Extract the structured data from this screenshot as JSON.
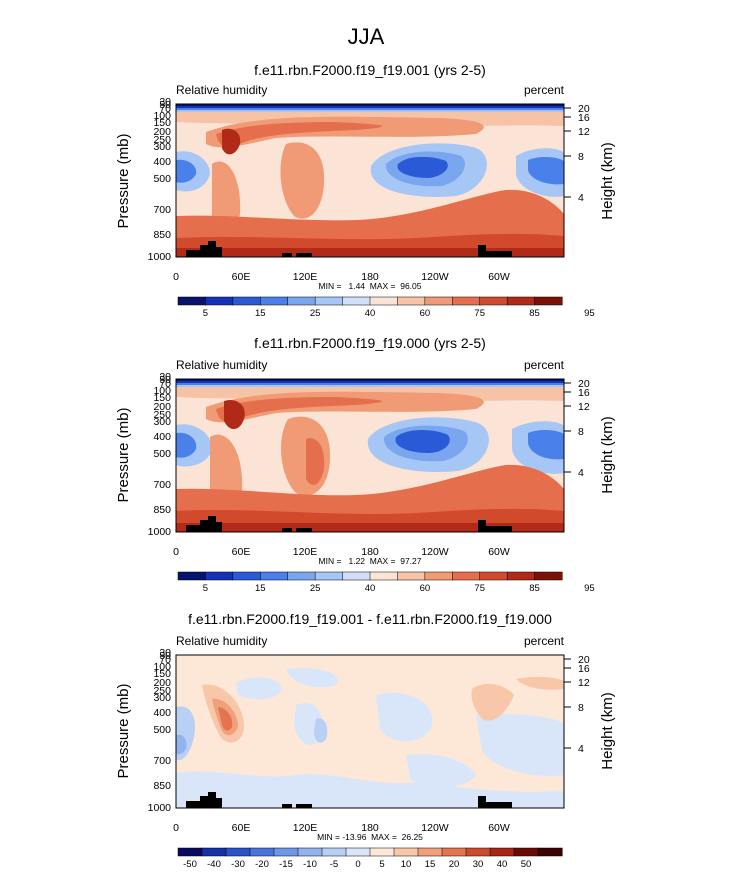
{
  "figure_title": "JJA",
  "chart_data": [
    {
      "type": "heatmap",
      "title": "f.e11.rbn.F2000.f19_f19.001 (yrs 2-5)",
      "left_label": "Relative humidity",
      "right_label": "percent",
      "ylabel": "Pressure (mb)",
      "y2label": "Height (km)",
      "x_ticks": [
        "0",
        "60E",
        "120E",
        "180",
        "120W",
        "60W"
      ],
      "y_ticks": [
        "1000",
        "850",
        "700",
        "500",
        "400",
        "300",
        "250",
        "200",
        "150",
        "100",
        "70",
        "50",
        "30"
      ],
      "y2_ticks": [
        "4",
        "8",
        "12",
        "16",
        "20"
      ],
      "stats": "MIN =   1.44  MAX =  96.05",
      "min": 1.44,
      "max": 96.05,
      "colorbar_labels": [
        "5",
        "15",
        "25",
        "40",
        "60",
        "75",
        "85",
        "95"
      ]
    },
    {
      "type": "heatmap",
      "title": "f.e11.rbn.F2000.f19_f19.000 (yrs 2-5)",
      "left_label": "Relative humidity",
      "right_label": "percent",
      "ylabel": "Pressure (mb)",
      "y2label": "Height (km)",
      "x_ticks": [
        "0",
        "60E",
        "120E",
        "180",
        "120W",
        "60W"
      ],
      "y_ticks": [
        "1000",
        "850",
        "700",
        "500",
        "400",
        "300",
        "250",
        "200",
        "150",
        "100",
        "70",
        "50",
        "30"
      ],
      "y2_ticks": [
        "4",
        "8",
        "12",
        "16",
        "20"
      ],
      "stats": "MIN =   1.22  MAX =  97.27",
      "min": 1.22,
      "max": 97.27,
      "colorbar_labels": [
        "5",
        "15",
        "25",
        "40",
        "60",
        "75",
        "85",
        "95"
      ]
    },
    {
      "type": "heatmap",
      "title": "f.e11.rbn.F2000.f19_f19.001 - f.e11.rbn.F2000.f19_f19.000",
      "left_label": "Relative humidity",
      "right_label": "percent",
      "ylabel": "Pressure (mb)",
      "y2label": "Height (km)",
      "x_ticks": [
        "0",
        "60E",
        "120E",
        "180",
        "120W",
        "60W"
      ],
      "y_ticks": [
        "1000",
        "850",
        "700",
        "500",
        "400",
        "300",
        "250",
        "200",
        "150",
        "100",
        "70",
        "50",
        "30"
      ],
      "y2_ticks": [
        "4",
        "8",
        "12",
        "16",
        "20"
      ],
      "stats": "MIN = -13.96  MAX =  26.25",
      "min": -13.96,
      "max": 26.25,
      "colorbar_labels": [
        "-50",
        "-40",
        "-30",
        "-20",
        "-15",
        "-10",
        "-5",
        "0",
        "5",
        "10",
        "15",
        "20",
        "30",
        "40",
        "50"
      ]
    }
  ],
  "colors": {
    "abs_palette": [
      "#08136e",
      "#1432b8",
      "#2a5ad6",
      "#4a80ea",
      "#7aa6f0",
      "#a6c6f5",
      "#cfe0f8",
      "#fbe4d6",
      "#f6c3a6",
      "#f09b76",
      "#e56f4c",
      "#d24a2c",
      "#b02a17",
      "#7a1208"
    ],
    "diff_palette": [
      "#0a0a60",
      "#1530a8",
      "#2a52c8",
      "#4a74dc",
      "#6d95e8",
      "#93b3f0",
      "#b8cff6",
      "#d9e6fa",
      "#fde8d8",
      "#f8c6a8",
      "#f1a07c",
      "#e4744f",
      "#ce4a2c",
      "#a82414",
      "#6a0a04",
      "#3a0200"
    ],
    "terrain": "#000000"
  }
}
